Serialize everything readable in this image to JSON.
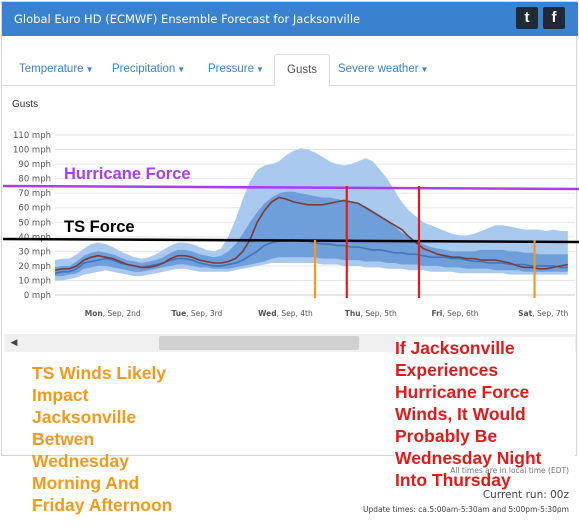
{
  "header": {
    "title": "Global Euro HD (ECMWF) Ensemble Forecast for Jacksonville",
    "twitter_icon": "twitter-icon",
    "facebook_icon": "facebook-icon",
    "twitter_glyph": "t",
    "facebook_glyph": "f"
  },
  "tabs": [
    {
      "label": "Temperature",
      "dropdown": true
    },
    {
      "label": "Precipitation",
      "dropdown": true
    },
    {
      "label": "Pressure",
      "dropdown": true
    },
    {
      "label": "Gusts",
      "dropdown": false,
      "active": true
    },
    {
      "label": "Severe weather",
      "dropdown": true
    }
  ],
  "section_label": "Gusts",
  "chart_data": {
    "type": "area",
    "title": "",
    "xlabel": "",
    "ylabel": "",
    "unit": "mph",
    "ylim": [
      0,
      110
    ],
    "y_ticks": [
      0,
      10,
      20,
      30,
      40,
      50,
      60,
      70,
      80,
      90,
      100,
      110
    ],
    "y_tick_labels": [
      "0 mph",
      "10 mph",
      "20 mph",
      "30 mph",
      "40 mph",
      "50 mph",
      "60 mph",
      "70 mph",
      "80 mph",
      "90 mph",
      "100 mph",
      "110 mph"
    ],
    "x_day_labels": [
      {
        "bold": "Mon",
        "rest": ", Sep, 2nd"
      },
      {
        "bold": "Tue",
        "rest": ", Sep, 3rd"
      },
      {
        "bold": "Wed",
        "rest": ", Sep, 4th"
      },
      {
        "bold": "Thu",
        "rest": ", Sep, 5th"
      },
      {
        "bold": "Fri",
        "rest": ", Sep, 6th"
      },
      {
        "bold": "Sat",
        "rest": ", Sep, 7th"
      }
    ],
    "x_days": [
      0,
      0.25,
      0.5,
      0.75,
      1,
      1.25,
      1.5,
      1.75,
      2,
      2.25,
      2.5,
      2.75,
      3,
      3.25,
      3.5,
      3.75,
      4,
      4.25,
      4.5,
      4.75,
      5,
      5.25,
      5.5,
      5.75,
      6,
      6.25,
      6.5,
      6.75,
      7,
      7.25,
      7.5,
      7.75,
      8,
      8.25,
      8.5,
      8.75,
      9,
      9.25,
      9.5,
      9.75,
      10,
      10.25,
      10.5,
      10.75,
      11,
      11.25,
      11.5,
      11.75,
      12,
      12.25,
      12.5,
      12.75,
      13,
      13.25,
      13.5,
      13.75,
      14,
      14.25,
      14.5,
      14.75,
      15,
      15.25,
      15.5,
      15.75,
      16,
      16.25,
      16.5,
      16.75,
      17,
      17.25,
      17.5,
      17.75
    ],
    "series": [
      {
        "name": "",
        "color": "#4473b8",
        "values": [
          15,
          16,
          16,
          18,
          22,
          23,
          24,
          25,
          24,
          22,
          21,
          20,
          19,
          20,
          21,
          22,
          24,
          25,
          25,
          24,
          22,
          21,
          20,
          20,
          21,
          22,
          24,
          27,
          30,
          34,
          36,
          37,
          37,
          38,
          37,
          37,
          36,
          35,
          35,
          34,
          34,
          33,
          33,
          32,
          31,
          31,
          30,
          29,
          29,
          28,
          28,
          27,
          26,
          26,
          26,
          25,
          25,
          24,
          23,
          23,
          22,
          22,
          22,
          21,
          21,
          21,
          20,
          20,
          20,
          20,
          19,
          19
        ]
      },
      {
        "name": "",
        "color": "#7a3b3b",
        "values": [
          17,
          18,
          18,
          20,
          24,
          26,
          27,
          26,
          25,
          23,
          21,
          20,
          19,
          19,
          20,
          22,
          25,
          27,
          27,
          26,
          24,
          23,
          22,
          22,
          23,
          25,
          30,
          38,
          50,
          58,
          64,
          67,
          66,
          64,
          63,
          62,
          62,
          62,
          63,
          64,
          65,
          64,
          63,
          60,
          57,
          54,
          51,
          48,
          45,
          40,
          36,
          32,
          30,
          28,
          27,
          26,
          26,
          25,
          25,
          24,
          24,
          24,
          23,
          22,
          20,
          19,
          19,
          18,
          18,
          19,
          20,
          21
        ]
      }
    ],
    "bands": [
      {
        "color": "#a9c9ef",
        "lower": [
          10,
          10,
          11,
          12,
          14,
          15,
          16,
          17,
          16,
          15,
          14,
          13,
          13,
          14,
          15,
          16,
          17,
          18,
          18,
          17,
          16,
          16,
          16,
          16,
          16,
          17,
          18,
          19,
          20,
          21,
          22,
          22,
          22,
          22,
          22,
          22,
          22,
          21,
          21,
          21,
          20,
          20,
          20,
          19,
          19,
          19,
          18,
          18,
          18,
          17,
          17,
          17,
          16,
          16,
          16,
          16,
          15,
          15,
          15,
          15,
          15,
          15,
          15,
          14,
          14,
          14,
          14,
          14,
          14,
          14,
          14,
          14
        ],
        "upper": [
          24,
          25,
          25,
          28,
          32,
          35,
          36,
          35,
          33,
          30,
          28,
          26,
          25,
          26,
          28,
          31,
          34,
          36,
          36,
          35,
          33,
          31,
          30,
          32,
          40,
          52,
          66,
          78,
          86,
          89,
          90,
          92,
          96,
          99,
          101,
          100,
          98,
          95,
          92,
          90,
          89,
          90,
          92,
          94,
          92,
          86,
          80,
          72,
          64,
          58,
          54,
          50,
          48,
          46,
          44,
          42,
          41,
          41,
          42,
          44,
          46,
          48,
          48,
          47,
          46,
          45,
          45,
          45,
          44,
          45,
          44,
          44
        ]
      },
      {
        "color": "#6f9fda",
        "lower": [
          13,
          13,
          14,
          15,
          18,
          19,
          20,
          20,
          19,
          18,
          17,
          16,
          16,
          17,
          18,
          19,
          20,
          21,
          21,
          20,
          19,
          19,
          18,
          18,
          18,
          19,
          20,
          21,
          22,
          23,
          25,
          26,
          26,
          26,
          26,
          26,
          26,
          25,
          25,
          25,
          24,
          24,
          24,
          23,
          23,
          23,
          22,
          22,
          21,
          21,
          21,
          20,
          20,
          20,
          19,
          19,
          19,
          18,
          18,
          18,
          18,
          17,
          17,
          17,
          17,
          16,
          16,
          16,
          16,
          16,
          16,
          16
        ],
        "upper": [
          19,
          20,
          20,
          23,
          27,
          29,
          30,
          29,
          28,
          26,
          24,
          23,
          22,
          23,
          24,
          26,
          29,
          31,
          31,
          30,
          28,
          27,
          26,
          27,
          30,
          35,
          42,
          50,
          57,
          63,
          67,
          70,
          71,
          71,
          70,
          69,
          68,
          67,
          67,
          66,
          65,
          64,
          63,
          61,
          58,
          55,
          51,
          47,
          43,
          40,
          37,
          35,
          33,
          32,
          31,
          30,
          30,
          30,
          30,
          31,
          31,
          31,
          31,
          30,
          30,
          29,
          29,
          28,
          28,
          28,
          28,
          28
        ]
      }
    ],
    "reference_lines": [
      {
        "label": "Hurricane Force",
        "color": "#a63ff2"
      },
      {
        "label": "TS Force",
        "color": "#000000"
      }
    ],
    "marker_lines": [
      {
        "x_day": 9.0,
        "color": "#f39a1d"
      },
      {
        "x_day": 10.1,
        "color": "#e01b1b"
      },
      {
        "x_day": 12.6,
        "color": "#e01b1b"
      },
      {
        "x_day": 16.6,
        "color": "#f39a1d"
      }
    ]
  },
  "annotations": {
    "orange": "TS Winds Likely Impact Jacksonville Betwen Wednesday Morning And Friday Afternoon",
    "red": "If Jacksonville Experiences Hurricane Force Winds, It Would Probably Be Wednesday Night Into Thursday"
  },
  "scrollbar": {
    "left_arrow": "◀",
    "right_arrow": "▶"
  },
  "footer": {
    "note": "All times are in local time (EDT)",
    "current_run": "Current run: 00z",
    "update_times": "Update times: ca.5:00am-5:30am and 5:00pm-5:30pm"
  }
}
